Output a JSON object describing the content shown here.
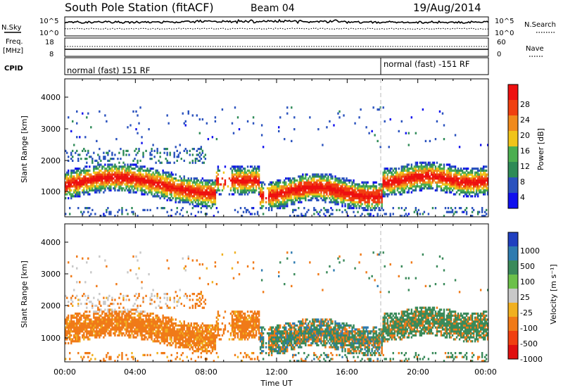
{
  "header": {
    "station": "South Pole Station (fitACF)",
    "beam": "Beam 04",
    "date": "19/Aug/2014"
  },
  "top_panels": {
    "nsky_label": "N.Sky",
    "nsky_ticks": [
      "10^5",
      "10^0"
    ],
    "nsearch_label": "N.Search",
    "nsearch_ticks": [
      "10^5",
      "10^0"
    ],
    "freq_label_1": "Freq.",
    "freq_label_2": "[MHz]",
    "freq_ticks": [
      "18",
      "8"
    ],
    "nave_label": "Nave",
    "nave_ticks": [
      "60",
      "0"
    ],
    "cpid_label": "CPID",
    "cpid_modes": [
      {
        "label": "normal (fast) 151 RF",
        "start_hour": 0
      },
      {
        "label": "normal (fast) -151 RF",
        "start_hour": 18
      }
    ]
  },
  "x_axis": {
    "label": "Time UT",
    "ticks": [
      "00:00",
      "04:00",
      "08:00",
      "12:00",
      "16:00",
      "20:00",
      "00:00"
    ],
    "range_hours": [
      0,
      24
    ],
    "mode_change_hour": 18
  },
  "chart_data": [
    {
      "type": "heatmap",
      "quantity": "power",
      "ylabel": "Slant Range [km]",
      "yticks": [
        "1000",
        "2000",
        "3000",
        "4000"
      ],
      "ylim": [
        200,
        4500
      ],
      "xlim": [
        0,
        24
      ],
      "colorbar": {
        "label": "Power [dB]",
        "ticks": [
          "4",
          "8",
          "12",
          "16",
          "20",
          "24",
          "28"
        ],
        "colors": [
          "#1010ee",
          "#2a52be",
          "#2e8b57",
          "#4caf50",
          "#f0c419",
          "#f08a1c",
          "#f04010",
          "#ee1010"
        ]
      }
    },
    {
      "type": "heatmap",
      "quantity": "velocity",
      "ylabel": "Slant Range [km]",
      "yticks": [
        "1000",
        "2000",
        "3000",
        "4000"
      ],
      "ylim": [
        200,
        4500
      ],
      "xlim": [
        0,
        24
      ],
      "colorbar": {
        "label": "Velocity [m s⁻¹]",
        "ticks": [
          "1000",
          "500",
          "100",
          "25",
          "-25",
          "-100",
          "-500",
          "-1000"
        ],
        "colors": [
          "#2040c0",
          "#2e7bb0",
          "#3a8a5a",
          "#6cc04a",
          "#c8c8c8",
          "#f0b020",
          "#f07a18",
          "#f04010",
          "#e01010"
        ]
      }
    }
  ]
}
